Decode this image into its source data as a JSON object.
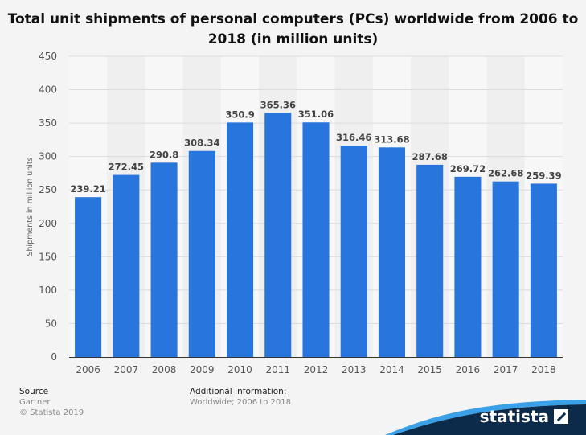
{
  "chart_data": {
    "type": "bar",
    "title": "Total unit shipments of personal computers (PCs) worldwide from 2006 to 2018 (in million units)",
    "xlabel": "",
    "ylabel": "Shipments in million units",
    "categories": [
      "2006",
      "2007",
      "2008",
      "2009",
      "2010",
      "2011",
      "2012",
      "2013",
      "2014",
      "2015",
      "2016",
      "2017",
      "2018"
    ],
    "values": [
      239.21,
      272.45,
      290.8,
      308.34,
      350.9,
      365.36,
      351.06,
      316.46,
      313.68,
      287.68,
      269.72,
      262.68,
      259.39
    ],
    "value_labels": [
      "239.21",
      "272.45",
      "290.8",
      "308.34",
      "350.9",
      "365.36",
      "351.06",
      "316.46",
      "313.68",
      "287.68",
      "269.72",
      "262.68",
      "259.39"
    ],
    "ylim": [
      0,
      450
    ],
    "yticks": [
      0,
      50,
      100,
      150,
      200,
      250,
      300,
      350,
      400,
      450
    ],
    "grid": true,
    "bar_color": "#2876dd"
  },
  "footer": {
    "source_heading": "Source",
    "source_lines": [
      "Gartner",
      "© Statista 2019"
    ],
    "info_heading": "Additional Information:",
    "info_lines": [
      "Worldwide; 2006 to 2018"
    ]
  },
  "brand": {
    "name": "statista",
    "color": "#0c2a4a"
  }
}
